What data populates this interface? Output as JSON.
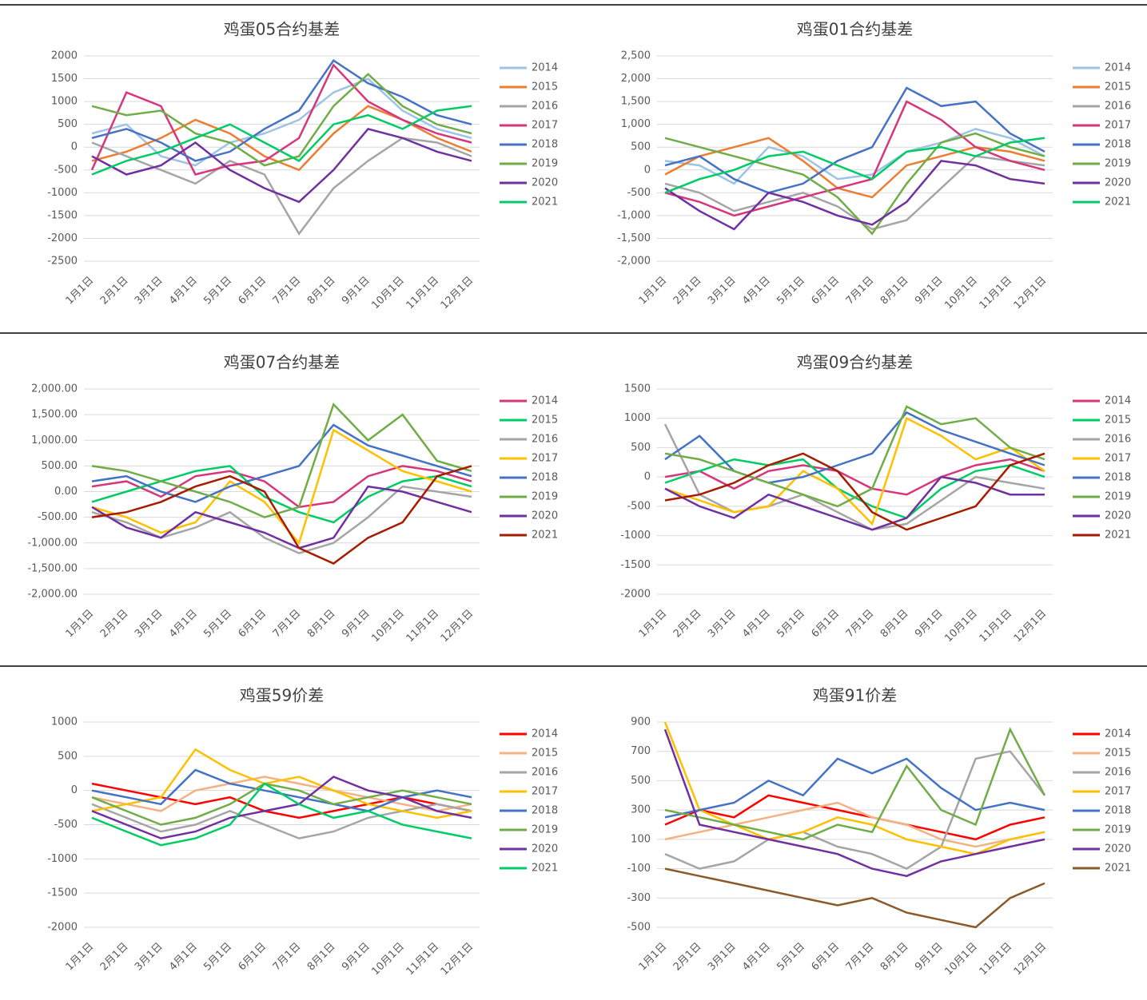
{
  "chart_data": [
    {
      "type": "line",
      "title": "鸡蛋05合约基差",
      "grid": true,
      "categories": [
        "1月1日",
        "2月1日",
        "3月1日",
        "4月1日",
        "5月1日",
        "6月1日",
        "7月1日",
        "8月1日",
        "9月1日",
        "10月1日",
        "11月1日",
        "12月1日"
      ],
      "ylim": [
        -2500,
        2000
      ],
      "yticks": [
        -2500,
        -2000,
        -1500,
        -1000,
        -500,
        0,
        500,
        1000,
        1500,
        2000
      ],
      "series": [
        {
          "name": "2014",
          "color": "#9dc3e6",
          "values": [
            300,
            500,
            -200,
            -400,
            100,
            300,
            600,
            1200,
            1500,
            800,
            400,
            200
          ]
        },
        {
          "name": "2015",
          "color": "#ed7d31",
          "values": [
            -300,
            -100,
            200,
            600,
            300,
            -200,
            -500,
            300,
            900,
            600,
            200,
            -100
          ]
        },
        {
          "name": "2016",
          "color": "#a5a5a5",
          "values": [
            100,
            -200,
            -500,
            -800,
            -300,
            -600,
            -1900,
            -900,
            -300,
            200,
            100,
            -200
          ]
        },
        {
          "name": "2017",
          "color": "#d6367b",
          "values": [
            -500,
            1200,
            900,
            -600,
            -400,
            -300,
            200,
            1800,
            1000,
            600,
            300,
            100
          ]
        },
        {
          "name": "2018",
          "color": "#4472c4",
          "values": [
            200,
            400,
            100,
            -300,
            -100,
            400,
            800,
            1900,
            1400,
            1100,
            700,
            500
          ]
        },
        {
          "name": "2019",
          "color": "#70ad47",
          "values": [
            900,
            700,
            800,
            300,
            100,
            -400,
            -200,
            900,
            1600,
            900,
            500,
            300
          ]
        },
        {
          "name": "2020",
          "color": "#7030a0",
          "values": [
            -200,
            -600,
            -400,
            100,
            -500,
            -900,
            -1200,
            -500,
            400,
            200,
            -100,
            -300
          ]
        },
        {
          "name": "2021",
          "color": "#00cc66",
          "values": [
            -600,
            -300,
            -100,
            200,
            500,
            100,
            -300,
            500,
            700,
            400,
            800,
            900
          ]
        }
      ]
    },
    {
      "type": "line",
      "title": "鸡蛋01合约基差",
      "grid": true,
      "categories": [
        "1月1日",
        "2月1日",
        "3月1日",
        "4月1日",
        "5月1日",
        "6月1日",
        "7月1日",
        "8月1日",
        "9月1日",
        "10月1日",
        "11月1日",
        "12月1日"
      ],
      "ylim": [
        -2000,
        2500
      ],
      "yticks": [
        {
          "value": -2000,
          "label": "-2,000"
        },
        {
          "value": -1500,
          "label": "-1,500"
        },
        {
          "value": -1000,
          "label": "-1,000"
        },
        -500,
        0,
        500,
        {
          "value": 1000,
          "label": "1,000"
        },
        {
          "value": 1500,
          "label": "1,500"
        },
        {
          "value": 2000,
          "label": "2,000"
        },
        {
          "value": 2500,
          "label": "2,500"
        }
      ],
      "series": [
        {
          "name": "2014",
          "color": "#9dc3e6",
          "values": [
            200,
            100,
            -300,
            500,
            300,
            -200,
            -100,
            400,
            600,
            900,
            700,
            300
          ]
        },
        {
          "name": "2015",
          "color": "#ed7d31",
          "values": [
            -100,
            300,
            500,
            700,
            200,
            -400,
            -600,
            100,
            300,
            500,
            400,
            200
          ]
        },
        {
          "name": "2016",
          "color": "#a5a5a5",
          "values": [
            -300,
            -500,
            -900,
            -700,
            -500,
            -800,
            -1300,
            -1100,
            -400,
            300,
            200,
            100
          ]
        },
        {
          "name": "2017",
          "color": "#d6367b",
          "values": [
            -500,
            -700,
            -1000,
            -800,
            -600,
            -400,
            -200,
            1500,
            1100,
            500,
            200,
            0
          ]
        },
        {
          "name": "2018",
          "color": "#4472c4",
          "values": [
            100,
            300,
            -200,
            -500,
            -300,
            200,
            500,
            1800,
            1400,
            1500,
            800,
            400
          ]
        },
        {
          "name": "2019",
          "color": "#70ad47",
          "values": [
            700,
            500,
            300,
            100,
            -100,
            -600,
            -1400,
            -300,
            600,
            800,
            500,
            300
          ]
        },
        {
          "name": "2020",
          "color": "#7030a0",
          "values": [
            -400,
            -900,
            -1300,
            -500,
            -700,
            -1000,
            -1200,
            -700,
            200,
            100,
            -200,
            -300
          ]
        },
        {
          "name": "2021",
          "color": "#00cc66",
          "values": [
            -500,
            -200,
            0,
            300,
            400,
            100,
            -200,
            400,
            500,
            300,
            600,
            700
          ]
        }
      ]
    },
    {
      "type": "line",
      "title": "鸡蛋07合约基差",
      "grid": true,
      "categories": [
        "1月1日",
        "2月1日",
        "3月1日",
        "4月1日",
        "5月1日",
        "6月1日",
        "7月1日",
        "8月1日",
        "9月1日",
        "10月1日",
        "11月1日",
        "12月1日"
      ],
      "ylim": [
        -2000,
        2000
      ],
      "yticks": [
        {
          "value": -2000,
          "label": "-2,000.00"
        },
        {
          "value": -1500,
          "label": "-1,500.00"
        },
        {
          "value": -1000,
          "label": "-1,000.00"
        },
        {
          "value": -500,
          "label": "-500.00"
        },
        {
          "value": 0,
          "label": "0.00"
        },
        {
          "value": 500,
          "label": "500.00"
        },
        {
          "value": 1000,
          "label": "1,000.00"
        },
        {
          "value": 1500,
          "label": "1,500.00"
        },
        {
          "value": 2000,
          "label": "2,000.00"
        }
      ],
      "series": [
        {
          "name": "2014",
          "color": "#d6367b",
          "values": [
            100,
            200,
            -100,
            300,
            400,
            200,
            -300,
            -200,
            300,
            500,
            400,
            200
          ]
        },
        {
          "name": "2015",
          "color": "#00cc66",
          "values": [
            -200,
            0,
            200,
            400,
            500,
            -100,
            -400,
            -600,
            -100,
            200,
            300,
            100
          ]
        },
        {
          "name": "2016",
          "color": "#a5a5a5",
          "values": [
            -400,
            -600,
            -900,
            -700,
            -400,
            -900,
            -1200,
            -1000,
            -500,
            100,
            0,
            -100
          ]
        },
        {
          "name": "2017",
          "color": "#ffc000",
          "values": [
            -300,
            -500,
            -800,
            -600,
            200,
            -200,
            -1000,
            1200,
            800,
            400,
            200,
            0
          ]
        },
        {
          "name": "2018",
          "color": "#4472c4",
          "values": [
            200,
            300,
            0,
            -200,
            100,
            300,
            500,
            1300,
            900,
            700,
            500,
            300
          ]
        },
        {
          "name": "2019",
          "color": "#70ad47",
          "values": [
            500,
            400,
            200,
            0,
            -200,
            -500,
            -300,
            1700,
            1000,
            1500,
            600,
            400
          ]
        },
        {
          "name": "2020",
          "color": "#7030a0",
          "values": [
            -300,
            -700,
            -900,
            -400,
            -600,
            -800,
            -1100,
            -900,
            100,
            0,
            -200,
            -400
          ]
        },
        {
          "name": "2021",
          "color": "#a61c00",
          "values": [
            -500,
            -400,
            -200,
            100,
            300,
            0,
            -1100,
            -1400,
            -900,
            -600,
            300,
            500
          ]
        }
      ]
    },
    {
      "type": "line",
      "title": "鸡蛋09合约基差",
      "grid": true,
      "categories": [
        "1月1日",
        "2月1日",
        "3月1日",
        "4月1日",
        "5月1日",
        "6月1日",
        "7月1日",
        "8月1日",
        "9月1日",
        "10月1日",
        "11月1日",
        "12月1日"
      ],
      "ylim": [
        -2000,
        1500
      ],
      "yticks": [
        -2000,
        -1500,
        -1000,
        -500,
        0,
        500,
        1000,
        1500
      ],
      "series": [
        {
          "name": "2014",
          "color": "#d6367b",
          "values": [
            0,
            100,
            -200,
            100,
            200,
            100,
            -200,
            -300,
            0,
            200,
            300,
            100
          ]
        },
        {
          "name": "2015",
          "color": "#00cc66",
          "values": [
            -100,
            100,
            300,
            200,
            300,
            -200,
            -500,
            -700,
            -200,
            100,
            200,
            0
          ]
        },
        {
          "name": "2016",
          "color": "#a5a5a5",
          "values": [
            900,
            -300,
            -600,
            -500,
            -300,
            -600,
            -900,
            -800,
            -400,
            0,
            -100,
            -200
          ]
        },
        {
          "name": "2017",
          "color": "#ffc000",
          "values": [
            -200,
            -400,
            -600,
            -500,
            100,
            -200,
            -800,
            1000,
            700,
            300,
            500,
            100
          ]
        },
        {
          "name": "2018",
          "color": "#4472c4",
          "values": [
            300,
            700,
            100,
            -100,
            0,
            200,
            400,
            1100,
            800,
            600,
            400,
            200
          ]
        },
        {
          "name": "2019",
          "color": "#70ad47",
          "values": [
            400,
            300,
            100,
            -100,
            -300,
            -500,
            -200,
            1200,
            900,
            1000,
            500,
            300
          ]
        },
        {
          "name": "2020",
          "color": "#7030a0",
          "values": [
            -200,
            -500,
            -700,
            -300,
            -500,
            -700,
            -900,
            -700,
            0,
            -100,
            -300,
            -300
          ]
        },
        {
          "name": "2021",
          "color": "#a61c00",
          "values": [
            -400,
            -300,
            -100,
            200,
            400,
            100,
            -600,
            -900,
            -700,
            -500,
            200,
            400
          ]
        }
      ]
    },
    {
      "type": "line",
      "title": "鸡蛋59价差",
      "grid": true,
      "categories": [
        "1月1日",
        "2月1日",
        "3月1日",
        "4月1日",
        "5月1日",
        "6月1日",
        "7月1日",
        "8月1日",
        "9月1日",
        "10月1日",
        "11月1日",
        "12月1日"
      ],
      "ylim": [
        -2000,
        1000
      ],
      "yticks": [
        -2000,
        -1500,
        -1000,
        -500,
        0,
        500,
        1000
      ],
      "series": [
        {
          "name": "2014",
          "color": "#ff0000",
          "values": [
            100,
            0,
            -100,
            -200,
            -100,
            -300,
            -400,
            -300,
            -200,
            -100,
            -200,
            -300
          ]
        },
        {
          "name": "2015",
          "color": "#f4b183",
          "values": [
            -100,
            -200,
            -300,
            0,
            100,
            200,
            100,
            0,
            -100,
            -200,
            -300,
            -200
          ]
        },
        {
          "name": "2016",
          "color": "#a5a5a5",
          "values": [
            -200,
            -400,
            -600,
            -500,
            -300,
            -500,
            -700,
            -600,
            -400,
            -300,
            -200,
            -300
          ]
        },
        {
          "name": "2017",
          "color": "#ffc000",
          "values": [
            -300,
            -200,
            -100,
            600,
            300,
            100,
            200,
            0,
            -200,
            -300,
            -400,
            -300
          ]
        },
        {
          "name": "2018",
          "color": "#4472c4",
          "values": [
            0,
            -100,
            -200,
            300,
            100,
            0,
            -100,
            -200,
            -300,
            -100,
            0,
            -100
          ]
        },
        {
          "name": "2019",
          "color": "#70ad47",
          "values": [
            -100,
            -300,
            -500,
            -400,
            -200,
            100,
            0,
            -200,
            -100,
            0,
            -100,
            -200
          ]
        },
        {
          "name": "2020",
          "color": "#7030a0",
          "values": [
            -300,
            -500,
            -700,
            -600,
            -400,
            -300,
            -200,
            200,
            0,
            -100,
            -300,
            -400
          ]
        },
        {
          "name": "2021",
          "color": "#00cc66",
          "values": [
            -400,
            -600,
            -800,
            -700,
            -500,
            100,
            -200,
            -400,
            -300,
            -500,
            -600,
            -700
          ]
        }
      ]
    },
    {
      "type": "line",
      "title": "鸡蛋91价差",
      "grid": true,
      "categories": [
        "1月1日",
        "2月1日",
        "3月1日",
        "4月1日",
        "5月1日",
        "6月1日",
        "7月1日",
        "8月1日",
        "9月1日",
        "10月1日",
        "11月1日",
        "12月1日"
      ],
      "ylim": [
        -500,
        900
      ],
      "yticks": [
        -500,
        -300,
        -100,
        100,
        300,
        500,
        700,
        900
      ],
      "series": [
        {
          "name": "2014",
          "color": "#ff0000",
          "values": [
            200,
            300,
            250,
            400,
            350,
            300,
            250,
            200,
            150,
            100,
            200,
            250
          ]
        },
        {
          "name": "2015",
          "color": "#f4b183",
          "values": [
            100,
            150,
            200,
            250,
            300,
            350,
            250,
            200,
            100,
            50,
            100,
            150
          ]
        },
        {
          "name": "2016",
          "color": "#a5a5a5",
          "values": [
            0,
            -100,
            -50,
            100,
            150,
            50,
            0,
            -100,
            50,
            650,
            700,
            400
          ]
        },
        {
          "name": "2017",
          "color": "#ffc000",
          "values": [
            900,
            300,
            200,
            100,
            150,
            250,
            200,
            100,
            50,
            0,
            100,
            150
          ]
        },
        {
          "name": "2018",
          "color": "#4472c4",
          "values": [
            250,
            300,
            350,
            500,
            400,
            650,
            550,
            650,
            450,
            300,
            350,
            300
          ]
        },
        {
          "name": "2019",
          "color": "#70ad47",
          "values": [
            300,
            250,
            200,
            150,
            100,
            200,
            150,
            600,
            300,
            200,
            850,
            400
          ]
        },
        {
          "name": "2020",
          "color": "#7030a0",
          "values": [
            850,
            200,
            150,
            100,
            50,
            0,
            -100,
            -150,
            -50,
            0,
            50,
            100
          ]
        },
        {
          "name": "2021",
          "color": "#8b5a2b",
          "values": [
            -100,
            -150,
            -200,
            -250,
            -300,
            -350,
            -300,
            -400,
            -450,
            -500,
            -300,
            -200
          ]
        }
      ]
    }
  ]
}
